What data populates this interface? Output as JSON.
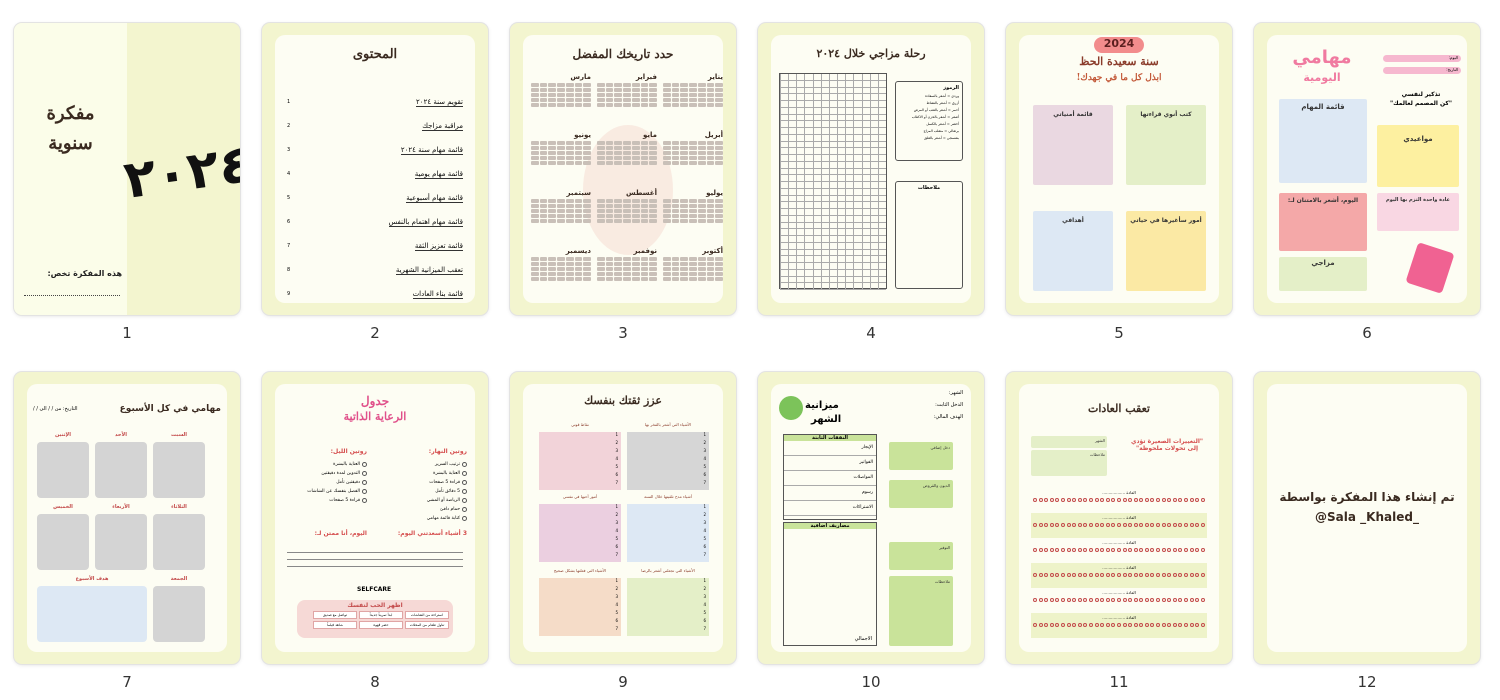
{
  "pages": [
    {
      "number": "1",
      "title_line1": "مفكرة",
      "title_line2": "سنوية",
      "year": "٢٠٢٤",
      "owner_label": "هذه المفكرة تخص:"
    },
    {
      "number": "2",
      "title": "المحتوى",
      "toc": [
        {
          "n": "1",
          "label": "تقويم سنة ٢٠٢٤"
        },
        {
          "n": "2",
          "label": "مراقبة مزاجك"
        },
        {
          "n": "3",
          "label": "قائمة مهام سنة ٢٠٢٤"
        },
        {
          "n": "4",
          "label": "قائمة مهام يومية"
        },
        {
          "n": "5",
          "label": "قائمة مهام أسبوعية"
        },
        {
          "n": "6",
          "label": "قائمة مهام اهتمام بالنفس"
        },
        {
          "n": "7",
          "label": "قائمة تعزيز الثقة"
        },
        {
          "n": "8",
          "label": "تعقب الميزانية الشهرية"
        },
        {
          "n": "9",
          "label": "قائمة بناء العادات"
        }
      ]
    },
    {
      "number": "3",
      "title": "حدد تاريخك المفضل",
      "months": [
        "يناير",
        "فبراير",
        "مارس",
        "أبريل",
        "مايو",
        "يونيو",
        "يوليو",
        "أغسطس",
        "سبتمبر",
        "أكتوبر",
        "نوفمبر",
        "ديسمبر"
      ]
    },
    {
      "number": "4",
      "title": "رحلة مزاجي خلال ٢٠٢٤",
      "legend_title": "الرموز",
      "legend": [
        "وردي = أشعر بالسعادة",
        "أزرق = أشعر بالنشاط",
        "أحمر = أشعر بالتعب أو المرض",
        "أصفر = أشعر بالحزن أو الاكتئاب",
        "أخضر = أشعر بالكسل",
        "برتقالي = متقلب المزاج",
        "بنفسجي = أشعر بالقلق"
      ],
      "notes_label": "ملاحظات"
    },
    {
      "number": "5",
      "badge": "2024",
      "title": "سنة سعيدة الحظ",
      "subtitle": "ابذل كل ما في جهدك!",
      "boxes": [
        "كتب أنوي قراءتها",
        "قائمة أمنياتي",
        "أمور سأغيرها في حياتي",
        "أهدافي"
      ]
    },
    {
      "number": "6",
      "title": "مهامي",
      "title2": "اليومية",
      "day_label": "اليوم:",
      "date_label": "التاريخ:",
      "quote_title": "تذكير لنفسي",
      "quote": "\"كن المصمم لعالمك\"",
      "tasks_label": "قائمة المهام",
      "appointments_label": "مواعيدي",
      "gratitude_label": "اليوم، أشعر بالامتنان لـ:",
      "habit_label": "عادة واحدة التزم بها اليوم",
      "mood_label": "مزاجي"
    },
    {
      "number": "7",
      "title": "مهامي في كل الأسبوع",
      "date_label": "التاريخ: من / / الى / /",
      "days": [
        "السبت",
        "الأحد",
        "الإثنين",
        "الثلاثاء",
        "الأربعاء",
        "الخميس",
        "الجمعة"
      ],
      "goals_label": "هدف الأسبوع"
    },
    {
      "number": "8",
      "title1": "جدول",
      "title2": "الرعاية الذاتية",
      "day_routine": "روتين النهار:",
      "night_routine": "روتين الليل:",
      "day_items": [
        "ترتيب السرير",
        "العناية بالبشرة",
        "قراءة 5 صفحات",
        "5 دقائق تأمل",
        "الرياضة أو المشي",
        "حمام دافئ",
        "كتابة قائمة مهامي"
      ],
      "night_items": [
        "العناية بالبشرة",
        "التدوين لمدة دقيقتين",
        "دقيقتين تأمل",
        "الفصل بنفسك عن الشاشات",
        "قراءة 5 صفحات"
      ],
      "grateful_label": "اليوم، أنا ممتن لـ:",
      "happy_label": "3 أشياء أسعدتني اليوم:",
      "selfcare_label": "SELFCARE",
      "love_label": "اظهر الحب لنفسك",
      "love_items": [
        "استراحة من الشاشات",
        "ابدأ تمريناً جديداً",
        "تواصل مع صديق",
        "تناول طعام من المحلات",
        "حضر قهوة",
        "شاهد فيلماً"
      ]
    },
    {
      "number": "9",
      "title": "عزز ثقتك بنفسك",
      "boxes": [
        "الأشياء التي أشعر بالفخر بها",
        "نقاط قوتي",
        "أشياء مدح تلقيتها خلال السنة",
        "أمور أحبها في نفسي",
        "الأشياء التي تجعلني أشعر بالرضا",
        "الأشياء التي فعلتها بشكل صحيح"
      ]
    },
    {
      "number": "10",
      "title1": "ميزانية",
      "title2": "الشهر",
      "month_label": "الشهر:",
      "income_label": "الدخل الثابت:",
      "goal_label": "الهدف المالي:",
      "fixed_label": "النفقات الثابتة",
      "fixed_items": [
        "الإيجار",
        "الفواتير",
        "المواصلات",
        "رسوم",
        "الاشتراكات"
      ],
      "extra_label": "مصاريف اضافية",
      "total_label": "الاجمالي",
      "total_income_label": "دخل إضافي",
      "debts_label": "الديون والقروض",
      "savings_label": "التوفير",
      "notes_label": "ملاحظات"
    },
    {
      "number": "11",
      "title": "تعقب العادات",
      "month_label": "الشهر",
      "notes_label": "ملاحظات",
      "quote": "\"التغييرات الصغيرة تؤدي إلى تحولات ملحوظة\"",
      "habit_label": "العادة"
    },
    {
      "number": "12",
      "text1": "تم إنشاء هذا المفكرة بواسطة",
      "text2": "@Sala _Khaled_"
    }
  ]
}
